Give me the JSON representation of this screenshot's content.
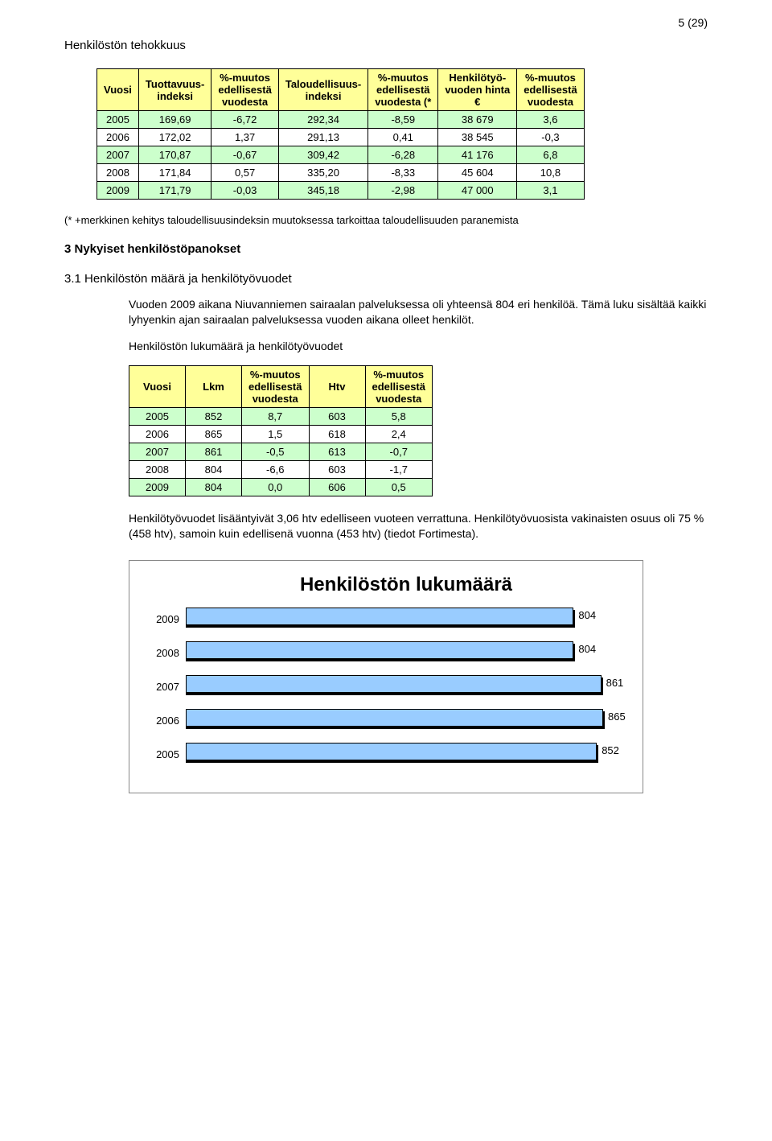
{
  "page_number": "5 (29)",
  "section_title": "Henkilöstön tehokkuus",
  "table1": {
    "header_bg": "#ffff99",
    "altrow_bg": "#ccffcc",
    "columns": [
      "Vuosi",
      "Tuottavuus-\nindeksi",
      "%-muutos\nedellisestä\nvuodesta",
      "Taloudellisuus-\nindeksi",
      "%-muutos\nedellisestä\nvuodesta (*",
      "Henkilötyö-\nvuoden hinta\n€",
      "%-muutos\nedellisestä\nvuodesta"
    ],
    "rows": [
      [
        "2005",
        "169,69",
        "-6,72",
        "292,34",
        "-8,59",
        "38 679",
        "3,6"
      ],
      [
        "2006",
        "172,02",
        "1,37",
        "291,13",
        "0,41",
        "38 545",
        "-0,3"
      ],
      [
        "2007",
        "170,87",
        "-0,67",
        "309,42",
        "-6,28",
        "41 176",
        "6,8"
      ],
      [
        "2008",
        "171,84",
        "0,57",
        "335,20",
        "-8,33",
        "45 604",
        "10,8"
      ],
      [
        "2009",
        "171,79",
        "-0,03",
        "345,18",
        "-2,98",
        "47 000",
        "3,1"
      ]
    ]
  },
  "footnote": "(* +merkkinen kehitys taloudellisuusindeksin muutoksessa tarkoittaa taloudellisuuden paranemista",
  "section3_title": "3 Nykyiset henkilöstöpanokset",
  "section31_title": "3.1 Henkilöstön määrä ja henkilötyövuodet",
  "para1": "Vuoden 2009 aikana Niuvanniemen sairaalan palveluksessa oli yhteensä 804 eri henkilöä. Tämä luku sisältää kaikki lyhyenkin ajan sairaalan palveluksessa vuoden aikana olleet henkilöt.",
  "para2_heading": "Henkilöstön lukumäärä ja henkilötyövuodet",
  "table2": {
    "header_bg": "#ffff99",
    "altrow_bg": "#ccffcc",
    "columns": [
      "Vuosi",
      "Lkm",
      "%-muutos\nedellisestä\nvuodesta",
      "Htv",
      "%-muutos\nedellisestä\nvuodesta"
    ],
    "rows": [
      [
        "2005",
        "852",
        "8,7",
        "603",
        "5,8"
      ],
      [
        "2006",
        "865",
        "1,5",
        "618",
        "2,4"
      ],
      [
        "2007",
        "861",
        "-0,5",
        "613",
        "-0,7"
      ],
      [
        "2008",
        "804",
        "-6,6",
        "603",
        "-1,7"
      ],
      [
        "2009",
        "804",
        "0,0",
        "606",
        "0,5"
      ]
    ]
  },
  "para3": "Henkilötyövuodet lisääntyivät 3,06 htv edelliseen vuoteen verrattuna. Henkilötyövuosista vakinaisten osuus oli 75 % (458 htv), samoin kuin edellisenä vuonna (453 htv) (tiedot Fortimesta).",
  "chart": {
    "title": "Henkilöstön lukumäärä",
    "bar_color": "#99ccff",
    "bar_border": "#000000",
    "max_value": 900,
    "label_fontsize": 13,
    "bars": [
      {
        "year": "2009",
        "value": 804,
        "label": "804"
      },
      {
        "year": "2008",
        "value": 804,
        "label": "804"
      },
      {
        "year": "2007",
        "value": 861,
        "label": "861"
      },
      {
        "year": "2006",
        "value": 865,
        "label": "865"
      },
      {
        "year": "2005",
        "value": 852,
        "label": "852"
      }
    ]
  }
}
